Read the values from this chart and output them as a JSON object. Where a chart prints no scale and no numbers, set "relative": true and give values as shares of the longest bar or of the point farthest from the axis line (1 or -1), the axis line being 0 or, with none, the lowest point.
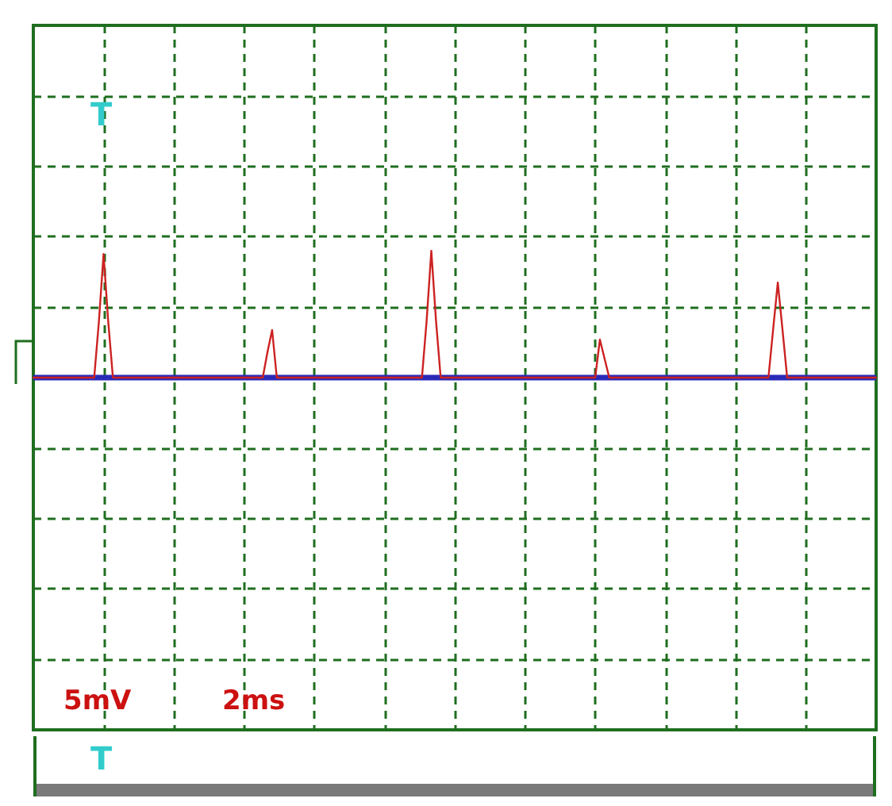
{
  "chart_data": {
    "type": "line",
    "relative": true,
    "grid": true,
    "line_style": "solid",
    "annotations": [
      "T",
      "5mV",
      "2ms",
      "T"
    ],
    "categories": [
      null,
      null,
      null,
      null,
      null,
      null,
      null,
      null,
      null,
      null,
      null,
      null,
      null,
      null,
      null,
      null,
      null,
      null,
      null,
      null,
      null,
      null,
      null,
      null,
      null,
      null,
      null,
      null,
      null,
      null,
      null,
      null,
      null,
      null,
      null,
      null,
      null,
      null,
      null,
      null,
      null,
      null,
      null,
      null,
      null,
      null,
      null,
      null,
      null,
      null,
      null,
      null,
      null,
      null,
      null,
      null,
      null,
      null,
      null,
      null,
      null,
      null,
      null,
      null,
      null,
      null,
      null,
      null,
      null,
      null,
      null,
      null,
      null,
      null,
      null,
      null,
      null,
      null,
      null,
      null,
      null,
      null,
      null,
      null,
      null,
      null,
      null,
      null,
      null,
      null,
      null,
      null,
      null,
      null,
      null,
      null,
      null,
      null,
      null,
      null,
      null,
      null,
      null,
      null,
      null,
      null,
      null,
      null,
      null,
      null,
      null,
      null,
      null,
      null,
      null,
      null,
      null,
      null,
      null,
      null,
      null,
      null,
      null,
      null,
      null,
      null,
      null,
      null,
      null,
      null,
      null,
      null,
      null,
      null,
      null,
      null,
      null,
      null,
      null,
      null,
      null,
      null,
      null,
      null,
      null,
      null,
      null,
      null,
      null,
      null,
      null,
      null,
      null,
      null,
      null,
      null,
      null,
      null,
      null,
      null,
      null,
      null,
      null,
      null,
      null,
      null,
      null,
      null,
      null,
      null,
      null,
      null,
      null,
      null,
      null,
      null,
      null,
      null,
      null,
      null,
      null
    ],
    "series": [
      {
        "color": "#cc2222",
        "values": [
          0,
          0,
          0,
          0,
          0,
          0,
          0,
          0,
          0,
          0,
          0,
          0,
          0,
          0,
          0.44,
          0.975,
          0.44,
          0,
          0,
          0,
          0,
          0,
          0,
          0,
          0,
          0,
          0,
          0,
          0,
          0,
          0,
          0,
          0,
          0,
          0,
          0,
          0,
          0,
          0,
          0,
          0,
          0,
          0,
          0,
          0,
          0,
          0,
          0,
          0,
          0,
          0.2,
          0.375,
          0,
          0,
          0,
          0,
          0,
          0,
          0,
          0,
          0,
          0,
          0,
          0,
          0,
          0,
          0,
          0,
          0,
          0,
          0,
          0,
          0,
          0,
          0,
          0,
          0,
          0,
          0,
          0,
          0,
          0,
          0,
          0,
          0.45,
          1,
          0.45,
          0,
          0,
          0,
          0,
          0,
          0,
          0,
          0,
          0,
          0,
          0,
          0,
          0,
          0,
          0,
          0,
          0,
          0,
          0,
          0,
          0,
          0,
          0,
          0,
          0,
          0,
          0,
          0,
          0,
          0,
          0,
          0,
          0,
          0,
          0.3,
          0.15,
          0,
          0,
          0,
          0,
          0,
          0,
          0,
          0,
          0,
          0,
          0,
          0,
          0,
          0,
          0,
          0,
          0,
          0,
          0,
          0,
          0,
          0,
          0,
          0,
          0,
          0,
          0,
          0,
          0,
          0,
          0,
          0,
          0,
          0,
          0,
          0.38,
          0.75,
          0.38,
          0,
          0,
          0,
          0,
          0,
          0,
          0,
          0,
          0,
          0,
          0,
          0,
          0,
          0,
          0,
          0,
          0,
          0,
          0,
          0
        ]
      }
    ],
    "ref_lines": [
      {
        "axis": "y",
        "value": 0,
        "label": null,
        "color": "#2a2ab8"
      }
    ]
  }
}
